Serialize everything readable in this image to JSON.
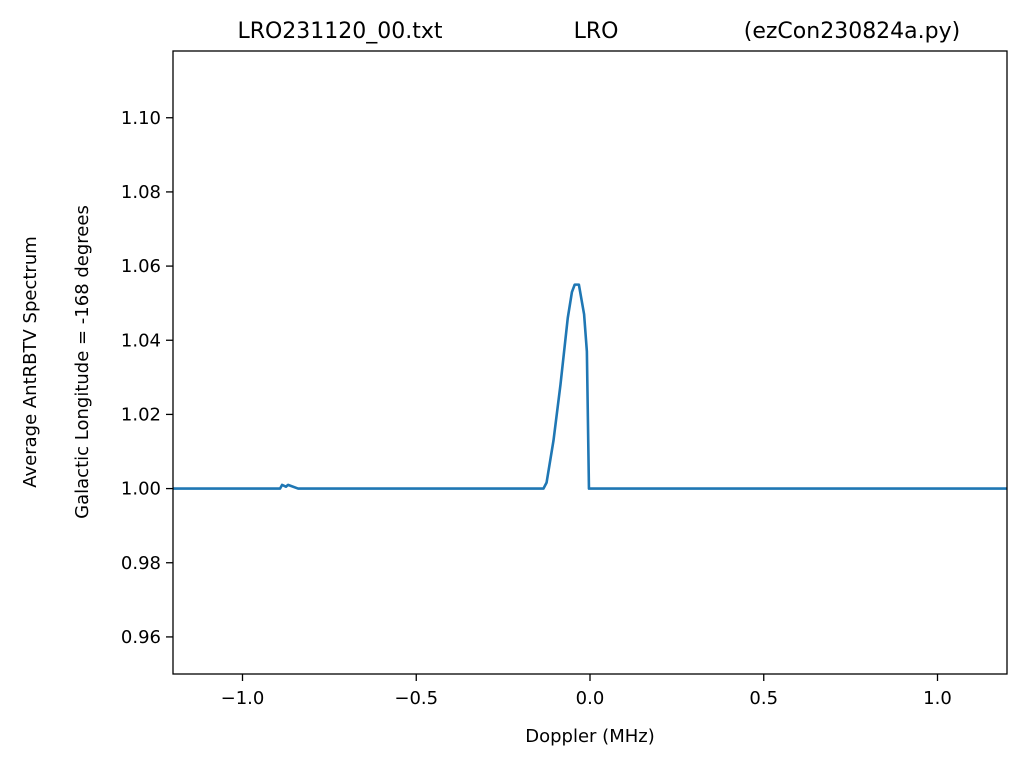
{
  "chart_data": {
    "type": "line",
    "title": [
      "LRO231120_00.txt",
      "LRO",
      "(ezCon230824a.py)"
    ],
    "x_label": "Doppler (MHz)",
    "y_label": [
      "Average AntRBTV Spectrum",
      "Galactic Longitude = -168 degrees"
    ],
    "x": [
      -1.2,
      -0.892,
      -0.886,
      -0.875,
      -0.869,
      -0.84,
      -0.134,
      -0.125,
      -0.105,
      -0.085,
      -0.064,
      -0.052,
      -0.044,
      -0.032,
      -0.017,
      -0.009,
      -0.003,
      1.2
    ],
    "series": [
      {
        "color": "#1f77b4",
        "values": [
          1.0,
          1.0,
          1.001,
          1.0005,
          1.001,
          1.0,
          1.0,
          1.0016,
          1.013,
          1.028,
          1.046,
          1.053,
          1.055,
          1.055,
          1.047,
          1.037,
          1.0,
          1.0
        ]
      }
    ],
    "xlim": [
      -1.2,
      1.2
    ],
    "ylim": [
      0.95,
      1.118
    ],
    "xticks": [
      {
        "value": -1,
        "label": "−1.0"
      },
      {
        "value": -0.5,
        "label": "−0.5"
      },
      {
        "value": 0,
        "label": "0.0"
      },
      {
        "value": 0.5,
        "label": "0.5"
      },
      {
        "value": 1,
        "label": "1.0"
      }
    ],
    "yticks": [
      0.96,
      0.98,
      {
        "value": 1,
        "label": "1.00"
      },
      1.02,
      1.04,
      1.06,
      1.08,
      {
        "value": 1.1,
        "label": "1.10"
      }
    ],
    "grid": false
  }
}
